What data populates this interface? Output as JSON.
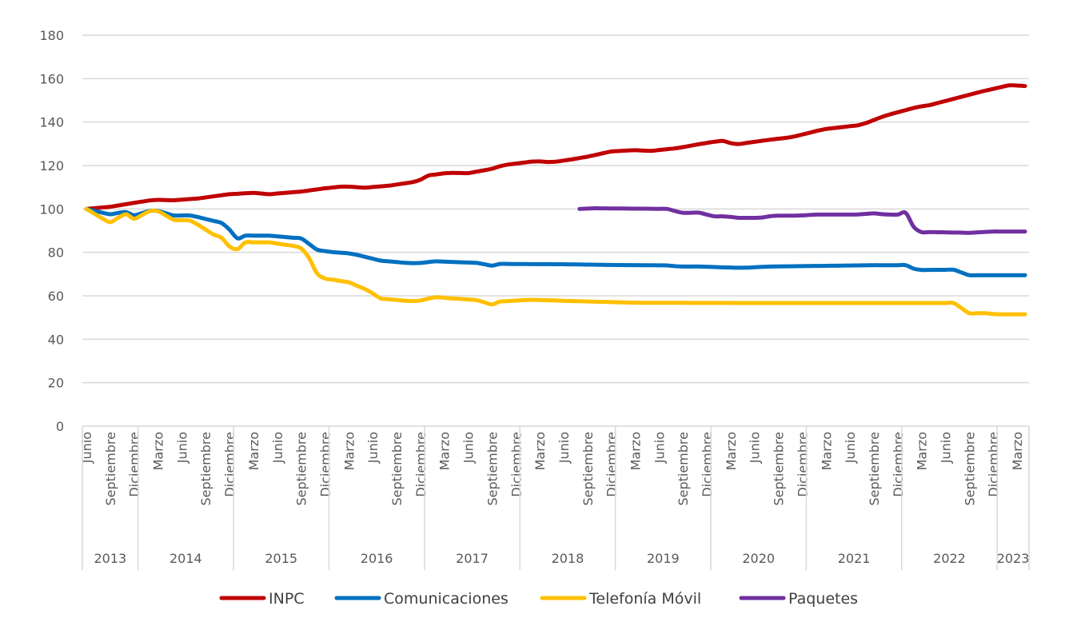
{
  "chart_data": {
    "type": "line",
    "title": "",
    "xlabel": "",
    "ylabel": "",
    "ylim": [
      0,
      180
    ],
    "yticks": [
      0,
      20,
      40,
      60,
      80,
      100,
      120,
      140,
      160,
      180
    ],
    "grid": true,
    "legend_position": "bottom",
    "x_start": "2013-06",
    "x_frequency": "monthly",
    "x_count": 119,
    "month_tick_every": 3,
    "month_tick_labels": [
      "Junio",
      "Septiembre",
      "Diciembre",
      "Marzo",
      "Junio",
      "Septiembre",
      "Diciembre",
      "Marzo",
      "Junio",
      "Septiembre",
      "Diciembre",
      "Marzo",
      "Junio",
      "Septiembre",
      "Diciembre",
      "Marzo",
      "Junio",
      "Septiembre",
      "Diciembre",
      "Marzo",
      "Junio",
      "Septiembre",
      "Diciembre",
      "Marzo",
      "Junio",
      "Septiembre",
      "Diciembre",
      "Marzo",
      "Junio",
      "Septiembre",
      "Diciembre",
      "Marzo",
      "Junio",
      "Septiembre",
      "Diciembre",
      "Marzo",
      "Junio",
      "Septiembre",
      "Diciembre",
      "Marzo"
    ],
    "year_groups": [
      {
        "label": "2013",
        "months": 7
      },
      {
        "label": "2014",
        "months": 12
      },
      {
        "label": "2015",
        "months": 12
      },
      {
        "label": "2016",
        "months": 12
      },
      {
        "label": "2017",
        "months": 12
      },
      {
        "label": "2018",
        "months": 12
      },
      {
        "label": "2019",
        "months": 12
      },
      {
        "label": "2020",
        "months": 12
      },
      {
        "label": "2021",
        "months": 12
      },
      {
        "label": "2022",
        "months": 12
      },
      {
        "label": "2023",
        "months": 4
      }
    ],
    "series": [
      {
        "name": "INPC",
        "color": "#C00000",
        "points": [
          [
            0,
            100
          ],
          [
            3,
            101
          ],
          [
            6,
            102.8
          ],
          [
            8.5,
            104.2
          ],
          [
            11,
            104
          ],
          [
            14,
            104.8
          ],
          [
            16,
            105.8
          ],
          [
            18,
            106.8
          ],
          [
            21,
            107.4
          ],
          [
            23,
            106.8
          ],
          [
            27,
            108
          ],
          [
            30,
            109.5
          ],
          [
            32.4,
            110.4
          ],
          [
            35,
            109.8
          ],
          [
            38,
            110.7
          ],
          [
            40.4,
            112
          ],
          [
            41.7,
            112.7
          ],
          [
            42.7,
            115.2
          ],
          [
            45.4,
            116.6
          ],
          [
            48,
            116.5
          ],
          [
            50.8,
            118.3
          ],
          [
            52.5,
            120.2
          ],
          [
            56.5,
            122
          ],
          [
            58.5,
            121.5
          ],
          [
            61,
            122.8
          ],
          [
            63.5,
            124.4
          ],
          [
            65.8,
            126.4
          ],
          [
            68.8,
            127.1
          ],
          [
            70.9,
            126.7
          ],
          [
            74.3,
            128
          ],
          [
            77.6,
            130.2
          ],
          [
            79.9,
            131.4
          ],
          [
            81.6,
            129.7
          ],
          [
            86,
            131.9
          ],
          [
            88.6,
            133
          ],
          [
            92.7,
            136.7
          ],
          [
            97.4,
            138.7
          ],
          [
            100.4,
            142.9
          ],
          [
            104.4,
            146.9
          ],
          [
            106,
            147.8
          ],
          [
            112.8,
            154.3
          ],
          [
            116.1,
            157
          ],
          [
            118,
            156.6
          ]
        ]
      },
      {
        "name": "Comunicaciones",
        "color": "#0070C0",
        "points": [
          [
            0,
            100
          ],
          [
            2.9,
            97.5
          ],
          [
            4.9,
            98.7
          ],
          [
            5.9,
            97
          ],
          [
            8.5,
            99.6
          ],
          [
            11,
            97
          ],
          [
            13.2,
            97
          ],
          [
            16.3,
            94.2
          ],
          [
            17.3,
            93.2
          ],
          [
            19,
            86.5
          ],
          [
            20,
            87.7
          ],
          [
            23,
            87.7
          ],
          [
            27.3,
            86.3
          ],
          [
            28.7,
            81.5
          ],
          [
            30.4,
            80.3
          ],
          [
            33.4,
            79.4
          ],
          [
            37,
            76.2
          ],
          [
            40.4,
            75.1
          ],
          [
            41.7,
            75
          ],
          [
            43.8,
            75.9
          ],
          [
            49.5,
            75.1
          ],
          [
            50.8,
            73.7
          ],
          [
            51.8,
            74.7
          ],
          [
            60.9,
            74.5
          ],
          [
            66,
            74.2
          ],
          [
            73,
            74
          ],
          [
            74.4,
            73.5
          ],
          [
            77.4,
            73.5
          ],
          [
            80,
            73.1
          ],
          [
            82.6,
            72.9
          ],
          [
            86,
            73.5
          ],
          [
            99,
            74.1
          ],
          [
            103,
            74.1
          ],
          [
            104.4,
            71.9
          ],
          [
            109,
            72
          ],
          [
            111,
            69.5
          ],
          [
            118,
            69.5
          ]
        ]
      },
      {
        "name": "Telefonía Móvil",
        "color": "#FFC000",
        "points": [
          [
            0,
            100
          ],
          [
            2.9,
            93.7
          ],
          [
            4.9,
            97.8
          ],
          [
            5.9,
            95.3
          ],
          [
            8.5,
            99.9
          ],
          [
            11,
            95
          ],
          [
            13.2,
            94.6
          ],
          [
            16,
            88.2
          ],
          [
            17,
            86.7
          ],
          [
            18.3,
            81.5
          ],
          [
            19,
            81.5
          ],
          [
            20,
            84.6
          ],
          [
            23,
            84.6
          ],
          [
            26.3,
            82.8
          ],
          [
            27.6,
            81
          ],
          [
            28.7,
            71
          ],
          [
            30,
            68
          ],
          [
            33,
            66.2
          ],
          [
            35.4,
            62.5
          ],
          [
            37,
            58.8
          ],
          [
            40.4,
            57.6
          ],
          [
            41.7,
            57.6
          ],
          [
            43.8,
            59.4
          ],
          [
            49.5,
            57.9
          ],
          [
            50.8,
            55.7
          ],
          [
            51.8,
            57.3
          ],
          [
            55.8,
            58.2
          ],
          [
            60.9,
            57.6
          ],
          [
            69.3,
            56.8
          ],
          [
            82.4,
            56.7
          ],
          [
            109,
            56.7
          ],
          [
            111,
            52
          ],
          [
            113,
            52
          ],
          [
            114.4,
            51.5
          ],
          [
            118,
            51.5
          ]
        ]
      },
      {
        "name": "Paquetes",
        "color": "#7030A0",
        "points": [
          [
            62,
            100
          ],
          [
            63.7,
            100.3
          ],
          [
            73.3,
            100
          ],
          [
            74.6,
            98.2
          ],
          [
            77.3,
            98.3
          ],
          [
            78.6,
            96.6
          ],
          [
            80.4,
            96.6
          ],
          [
            82,
            95.9
          ],
          [
            84.7,
            95.9
          ],
          [
            86.4,
            96.9
          ],
          [
            89.4,
            96.9
          ],
          [
            91.7,
            97.4
          ],
          [
            96.8,
            97.4
          ],
          [
            99.1,
            98
          ],
          [
            100.4,
            97.4
          ],
          [
            102.4,
            97.4
          ],
          [
            103,
            98.2
          ],
          [
            104.4,
            89.2
          ],
          [
            105.4,
            89.4
          ],
          [
            111,
            89
          ],
          [
            114,
            89.6
          ],
          [
            118,
            89.6
          ]
        ]
      }
    ]
  }
}
